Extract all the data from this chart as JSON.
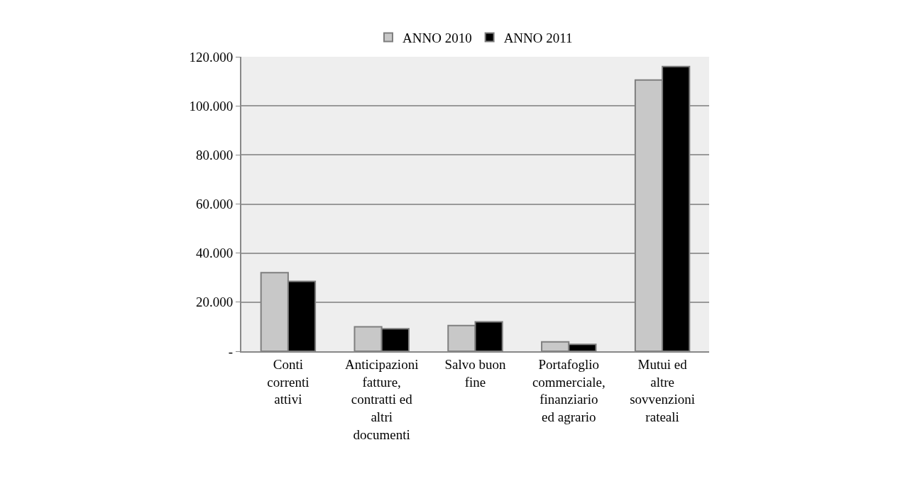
{
  "chart_data": {
    "type": "bar",
    "categories": [
      "Conti correnti attivi",
      "Anticipazioni fatture, contratti ed altri documenti",
      "Salvo buon fine",
      "Portafoglio commerciale, finanziario ed agrario",
      "Mutui ed altre sovvenzioni rateali"
    ],
    "series": [
      {
        "name": "ANNO 2010",
        "color": "#c8c8c8",
        "values": [
          32000,
          10000,
          10500,
          3800,
          110500
        ]
      },
      {
        "name": "ANNO 2011",
        "color": "#000000",
        "values": [
          28500,
          9200,
          12000,
          2800,
          116000
        ]
      }
    ],
    "ylim": [
      0,
      120000
    ],
    "yticks": [
      {
        "value": 0,
        "label": "-"
      },
      {
        "value": 20000,
        "label": "20.000"
      },
      {
        "value": 40000,
        "label": "40.000"
      },
      {
        "value": 60000,
        "label": "60.000"
      },
      {
        "value": 80000,
        "label": "80.000"
      },
      {
        "value": 100000,
        "label": "100.000"
      },
      {
        "value": 120000,
        "label": "120.000"
      }
    ],
    "grid": "y",
    "legend": "top"
  }
}
